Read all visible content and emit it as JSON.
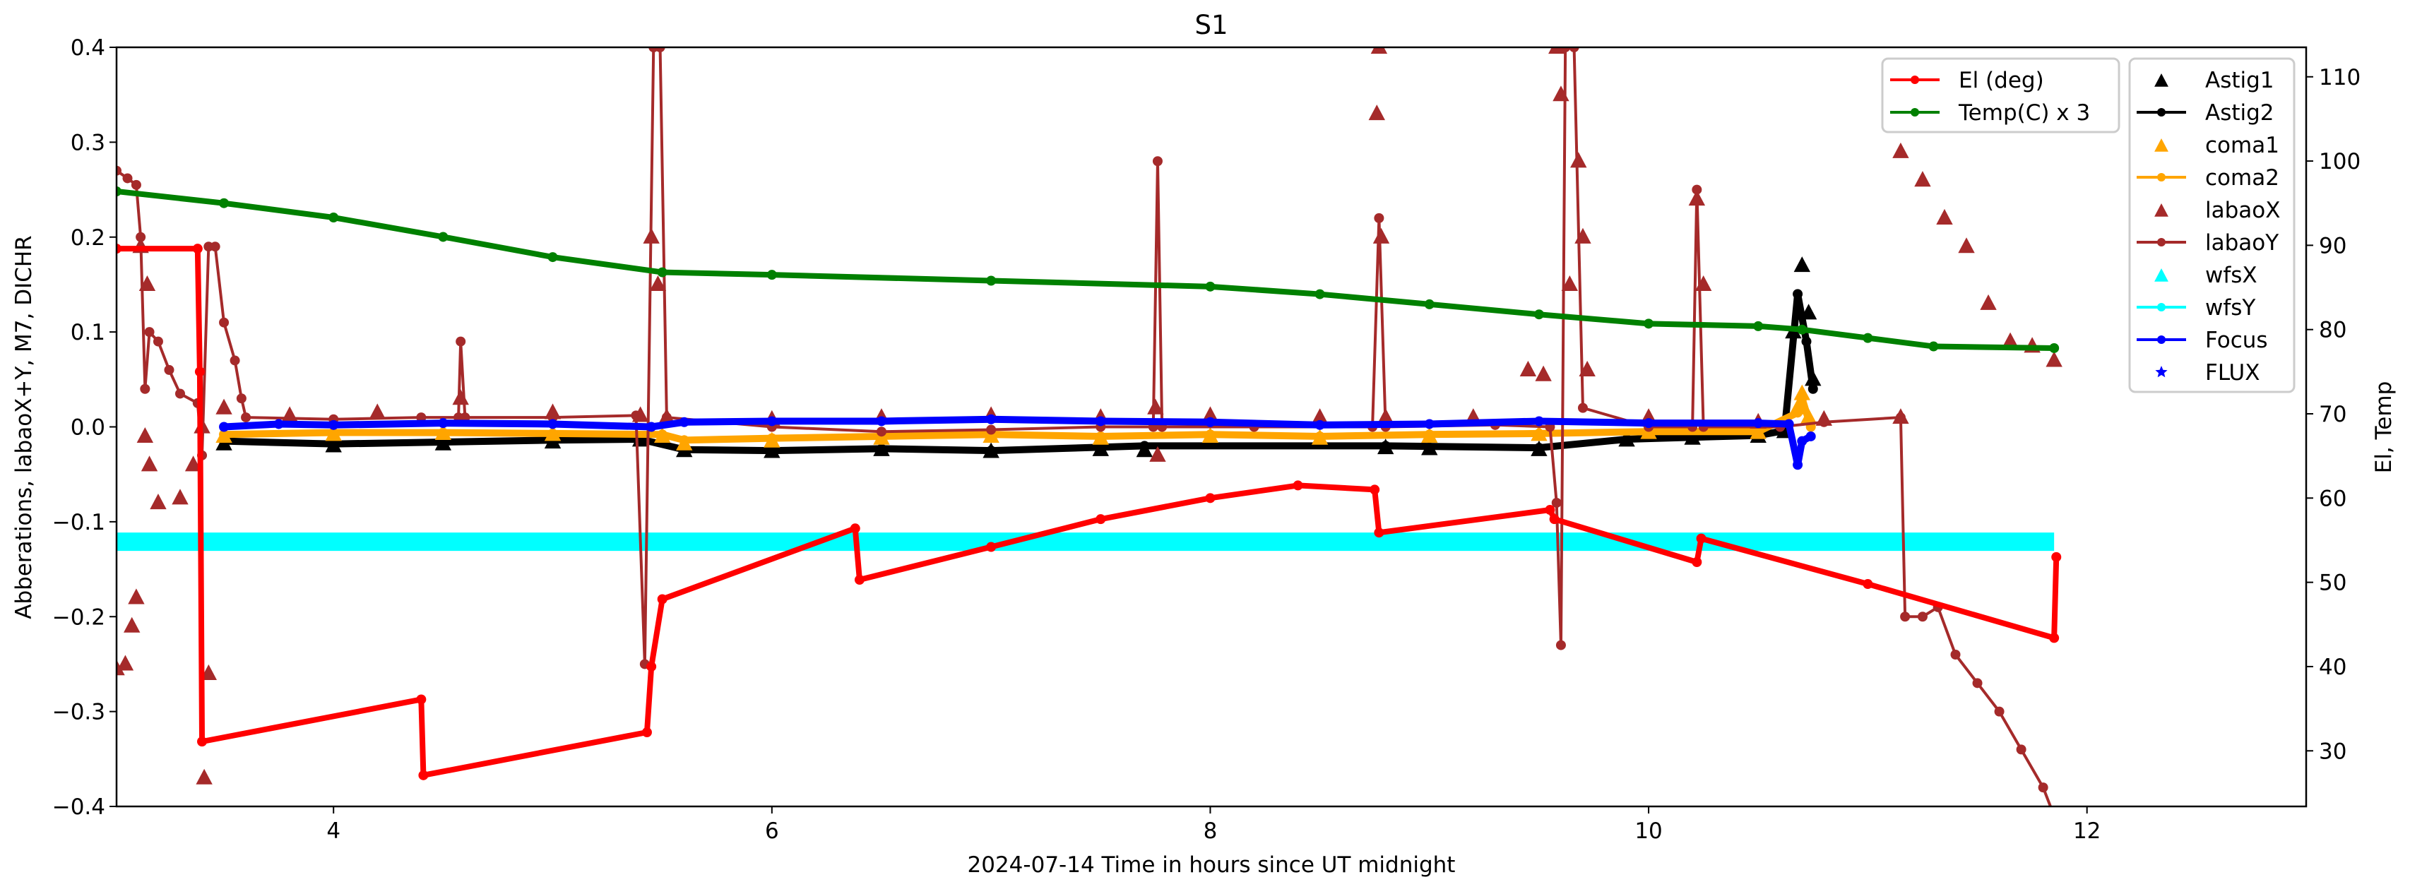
{
  "chart_data": {
    "type": "line",
    "title": "S1",
    "xlabel": "2024-07-14  Time in hours since UT midnight",
    "ylabel": "Abberations, labaoX+Y, M7, DICHR",
    "y2label": "El, Temp",
    "xlim": [
      3.01,
      13.0
    ],
    "ylim": [
      -0.4,
      0.4
    ],
    "y2lim": [
      23.4,
      113.5
    ],
    "xticks": [
      4,
      6,
      8,
      10,
      12
    ],
    "xtick_labels": [
      "4",
      "6",
      "8",
      "10",
      "12"
    ],
    "yticks": [
      0.4,
      0.3,
      0.2,
      0.1,
      0.0,
      -0.1,
      -0.2,
      -0.3,
      -0.4
    ],
    "ytick_labels": [
      "0.4",
      "0.3",
      "0.2",
      "0.1",
      "0.0",
      "−0.1",
      "−0.2",
      "−0.3",
      "−0.4"
    ],
    "y2ticks": [
      110,
      100,
      90,
      80,
      70,
      60,
      50,
      40,
      30
    ],
    "y2tick_labels": [
      "110",
      "100",
      "90",
      "80",
      "70",
      "60",
      "50",
      "40",
      "30"
    ],
    "grid": false,
    "legend_right_axis": {
      "placement": "top-right",
      "entries": [
        {
          "label": "El (deg)",
          "color": "#ff0000",
          "handle": "line-dot"
        },
        {
          "label": "Temp(C) x 3",
          "color": "#008000",
          "handle": "line-dot"
        }
      ]
    },
    "legend_left_axis": {
      "placement": "top-right",
      "entries": [
        {
          "label": "Astig1",
          "color": "#000000",
          "handle": "triangle"
        },
        {
          "label": "Astig2",
          "color": "#000000",
          "handle": "line-dot"
        },
        {
          "label": "coma1",
          "color": "#ffa500",
          "handle": "triangle"
        },
        {
          "label": "coma2",
          "color": "#ffa500",
          "handle": "line-dot"
        },
        {
          "label": "labaoX",
          "color": "#a52a2a",
          "handle": "triangle"
        },
        {
          "label": "labaoY",
          "color": "#a52a2a",
          "handle": "line-dot"
        },
        {
          "label": "wfsX",
          "color": "#00ffff",
          "handle": "triangle"
        },
        {
          "label": "wfsY",
          "color": "#00ffff",
          "handle": "line-dot"
        },
        {
          "label": "Focus",
          "color": "#0000ff",
          "handle": "line-dot"
        },
        {
          "label": "FLUX",
          "color": "#0000ff",
          "handle": "star"
        }
      ]
    },
    "series": [
      {
        "name": "wfsX",
        "axis": "left",
        "color": "#00ffff",
        "style": "band",
        "points": [
          [
            3.01,
            -0.121
          ],
          [
            11.85,
            -0.121
          ]
        ]
      },
      {
        "name": "Astig1",
        "axis": "left",
        "color": "#000000",
        "style": "marker",
        "points": [
          [
            3.5,
            -0.018
          ],
          [
            4.0,
            -0.02
          ],
          [
            4.5,
            -0.018
          ],
          [
            5.0,
            -0.016
          ],
          [
            5.4,
            -0.014
          ],
          [
            5.6,
            -0.025
          ],
          [
            6.0,
            -0.026
          ],
          [
            6.5,
            -0.024
          ],
          [
            7.0,
            -0.026
          ],
          [
            7.5,
            -0.024
          ],
          [
            7.7,
            -0.025
          ],
          [
            8.8,
            -0.022
          ],
          [
            9.0,
            -0.023
          ],
          [
            9.5,
            -0.024
          ],
          [
            9.9,
            -0.014
          ],
          [
            10.2,
            -0.012
          ],
          [
            10.5,
            -0.01
          ],
          [
            10.62,
            -0.005
          ],
          [
            10.66,
            0.1
          ],
          [
            10.7,
            0.17
          ],
          [
            10.73,
            0.12
          ],
          [
            10.75,
            0.05
          ]
        ]
      },
      {
        "name": "Astig2",
        "axis": "left",
        "color": "#000000",
        "style": "both",
        "points": [
          [
            3.5,
            -0.015
          ],
          [
            4.0,
            -0.018
          ],
          [
            4.5,
            -0.016
          ],
          [
            5.0,
            -0.014
          ],
          [
            5.4,
            -0.013
          ],
          [
            5.6,
            -0.024
          ],
          [
            6.0,
            -0.025
          ],
          [
            6.5,
            -0.023
          ],
          [
            7.0,
            -0.025
          ],
          [
            7.7,
            -0.02
          ],
          [
            8.8,
            -0.02
          ],
          [
            9.5,
            -0.022
          ],
          [
            9.9,
            -0.013
          ],
          [
            10.5,
            -0.009
          ],
          [
            10.62,
            -0.004
          ],
          [
            10.68,
            0.14
          ],
          [
            10.72,
            0.09
          ],
          [
            10.75,
            0.04
          ]
        ]
      },
      {
        "name": "coma1",
        "axis": "left",
        "color": "#ffa500",
        "style": "marker",
        "points": [
          [
            3.5,
            -0.01
          ],
          [
            4.0,
            -0.008
          ],
          [
            4.5,
            -0.007
          ],
          [
            5.0,
            -0.008
          ],
          [
            5.5,
            -0.01
          ],
          [
            5.6,
            -0.018
          ],
          [
            6.0,
            -0.015
          ],
          [
            6.5,
            -0.012
          ],
          [
            7.0,
            -0.01
          ],
          [
            7.5,
            -0.012
          ],
          [
            8.0,
            -0.01
          ],
          [
            8.5,
            -0.012
          ],
          [
            9.0,
            -0.01
          ],
          [
            9.5,
            -0.008
          ],
          [
            10.0,
            -0.006
          ],
          [
            10.5,
            -0.006
          ],
          [
            10.68,
            0.02
          ],
          [
            10.7,
            0.035
          ],
          [
            10.73,
            0.01
          ]
        ]
      },
      {
        "name": "coma2",
        "axis": "left",
        "color": "#ffa500",
        "style": "both",
        "points": [
          [
            3.5,
            -0.008
          ],
          [
            4.0,
            -0.006
          ],
          [
            4.5,
            -0.006
          ],
          [
            5.0,
            -0.007
          ],
          [
            5.5,
            -0.008
          ],
          [
            5.6,
            -0.014
          ],
          [
            6.0,
            -0.012
          ],
          [
            6.5,
            -0.01
          ],
          [
            7.0,
            -0.008
          ],
          [
            7.5,
            -0.01
          ],
          [
            8.0,
            -0.008
          ],
          [
            8.5,
            -0.01
          ],
          [
            9.0,
            -0.008
          ],
          [
            9.5,
            -0.007
          ],
          [
            10.0,
            -0.005
          ],
          [
            10.5,
            -0.005
          ],
          [
            10.68,
            0.015
          ],
          [
            10.7,
            0.03
          ],
          [
            10.74,
            0.0
          ]
        ]
      },
      {
        "name": "labaoX",
        "axis": "left",
        "color": "#a52a2a",
        "style": "marker",
        "points": [
          [
            3.01,
            -0.255
          ],
          [
            3.05,
            -0.25
          ],
          [
            3.08,
            -0.21
          ],
          [
            3.1,
            -0.18
          ],
          [
            3.12,
            0.19
          ],
          [
            3.15,
            0.15
          ],
          [
            3.14,
            -0.01
          ],
          [
            3.16,
            -0.04
          ],
          [
            3.2,
            -0.08
          ],
          [
            3.3,
            -0.075
          ],
          [
            3.36,
            -0.04
          ],
          [
            3.4,
            0.0
          ],
          [
            3.41,
            -0.37
          ],
          [
            3.43,
            -0.26
          ],
          [
            3.5,
            0.02
          ],
          [
            3.8,
            0.012
          ],
          [
            4.2,
            0.015
          ],
          [
            4.58,
            0.03
          ],
          [
            5.0,
            0.015
          ],
          [
            5.4,
            0.012
          ],
          [
            5.45,
            0.2
          ],
          [
            5.48,
            0.15
          ],
          [
            5.52,
            0.01
          ],
          [
            6.0,
            0.008
          ],
          [
            6.5,
            0.01
          ],
          [
            7.0,
            0.012
          ],
          [
            7.5,
            0.01
          ],
          [
            7.75,
            0.02
          ],
          [
            7.76,
            -0.03
          ],
          [
            8.0,
            0.012
          ],
          [
            8.5,
            0.01
          ],
          [
            8.77,
            0.4
          ],
          [
            8.76,
            0.33
          ],
          [
            8.78,
            0.2
          ],
          [
            8.8,
            0.01
          ],
          [
            9.2,
            0.01
          ],
          [
            9.45,
            0.06
          ],
          [
            9.52,
            0.055
          ],
          [
            9.58,
            0.4
          ],
          [
            9.6,
            0.35
          ],
          [
            9.64,
            0.15
          ],
          [
            9.68,
            0.28
          ],
          [
            9.7,
            0.2
          ],
          [
            9.72,
            0.06
          ],
          [
            10.0,
            0.01
          ],
          [
            10.22,
            0.24
          ],
          [
            10.25,
            0.15
          ],
          [
            10.5,
            0.005
          ],
          [
            10.8,
            0.008
          ],
          [
            11.15,
            0.01
          ],
          [
            11.15,
            0.29
          ],
          [
            11.25,
            0.26
          ],
          [
            11.35,
            0.22
          ],
          [
            11.45,
            0.19
          ],
          [
            11.55,
            0.13
          ],
          [
            11.65,
            0.09
          ],
          [
            11.75,
            0.085
          ],
          [
            11.85,
            0.07
          ]
        ]
      },
      {
        "name": "labaoY",
        "axis": "left",
        "color": "#a52a2a",
        "style": "both",
        "points": [
          [
            3.01,
            0.27
          ],
          [
            3.06,
            0.262
          ],
          [
            3.1,
            0.255
          ],
          [
            3.12,
            0.2
          ],
          [
            3.14,
            0.04
          ],
          [
            3.16,
            0.1
          ],
          [
            3.2,
            0.09
          ],
          [
            3.25,
            0.06
          ],
          [
            3.3,
            0.035
          ],
          [
            3.38,
            0.025
          ],
          [
            3.4,
            -0.03
          ],
          [
            3.43,
            0.19
          ],
          [
            3.46,
            0.19
          ],
          [
            3.5,
            0.11
          ],
          [
            3.55,
            0.07
          ],
          [
            3.58,
            0.03
          ],
          [
            3.6,
            0.01
          ],
          [
            4.0,
            0.008
          ],
          [
            4.4,
            0.01
          ],
          [
            4.57,
            0.01
          ],
          [
            4.58,
            0.09
          ],
          [
            4.6,
            0.01
          ],
          [
            5.0,
            0.01
          ],
          [
            5.38,
            0.012
          ],
          [
            5.42,
            -0.25
          ],
          [
            5.46,
            0.4
          ],
          [
            5.49,
            0.4
          ],
          [
            5.52,
            0.01
          ],
          [
            6.0,
            0.0
          ],
          [
            6.5,
            -0.005
          ],
          [
            7.0,
            -0.003
          ],
          [
            7.5,
            0.0
          ],
          [
            7.74,
            0.0
          ],
          [
            7.76,
            0.28
          ],
          [
            7.78,
            0.0
          ],
          [
            8.2,
            0.0
          ],
          [
            8.74,
            0.0
          ],
          [
            8.77,
            0.22
          ],
          [
            8.8,
            0.0
          ],
          [
            9.3,
            0.002
          ],
          [
            9.55,
            0.0
          ],
          [
            9.58,
            -0.08
          ],
          [
            9.6,
            -0.23
          ],
          [
            9.62,
            0.4
          ],
          [
            9.66,
            0.4
          ],
          [
            9.7,
            0.02
          ],
          [
            10.0,
            0.0
          ],
          [
            10.2,
            0.0
          ],
          [
            10.22,
            0.25
          ],
          [
            10.25,
            0.0
          ],
          [
            10.6,
            0.0
          ],
          [
            10.8,
            0.005
          ],
          [
            11.15,
            0.01
          ],
          [
            11.17,
            -0.2
          ],
          [
            11.25,
            -0.2
          ],
          [
            11.32,
            -0.19
          ],
          [
            11.4,
            -0.24
          ],
          [
            11.5,
            -0.27
          ],
          [
            11.6,
            -0.3
          ],
          [
            11.7,
            -0.34
          ],
          [
            11.8,
            -0.38
          ],
          [
            11.85,
            -0.41
          ]
        ]
      },
      {
        "name": "Focus",
        "axis": "left",
        "color": "#0000ff",
        "style": "both",
        "points": [
          [
            3.5,
            0.0
          ],
          [
            3.75,
            0.003
          ],
          [
            4.0,
            0.002
          ],
          [
            4.5,
            0.004
          ],
          [
            5.0,
            0.003
          ],
          [
            5.45,
            0.0
          ],
          [
            5.6,
            0.005
          ],
          [
            6.0,
            0.006
          ],
          [
            6.5,
            0.006
          ],
          [
            7.0,
            0.008
          ],
          [
            7.5,
            0.006
          ],
          [
            8.0,
            0.005
          ],
          [
            8.5,
            0.002
          ],
          [
            9.0,
            0.003
          ],
          [
            9.5,
            0.006
          ],
          [
            10.0,
            0.004
          ],
          [
            10.5,
            0.004
          ],
          [
            10.64,
            0.003
          ],
          [
            10.68,
            -0.04
          ],
          [
            10.7,
            -0.015
          ],
          [
            10.74,
            -0.01
          ]
        ]
      },
      {
        "name": "El (deg)",
        "axis": "right",
        "color": "#ff0000",
        "style": "both",
        "points": [
          [
            3.01,
            89.6
          ],
          [
            3.38,
            89.6
          ],
          [
            3.39,
            75
          ],
          [
            3.4,
            31.1
          ],
          [
            4.4,
            36.1
          ],
          [
            4.41,
            27.1
          ],
          [
            5.43,
            32.2
          ],
          [
            5.45,
            40
          ],
          [
            5.5,
            48
          ],
          [
            6.38,
            56.4
          ],
          [
            6.4,
            50.3
          ],
          [
            7.0,
            54.2
          ],
          [
            7.5,
            57.5
          ],
          [
            8.0,
            60
          ],
          [
            8.4,
            61.5
          ],
          [
            8.75,
            61
          ],
          [
            8.77,
            55.9
          ],
          [
            9.55,
            58.6
          ],
          [
            9.57,
            57.5
          ],
          [
            10.22,
            52.4
          ],
          [
            10.24,
            55.2
          ],
          [
            11.0,
            49.8
          ],
          [
            11.85,
            43.4
          ],
          [
            11.86,
            53
          ]
        ]
      },
      {
        "name": "Temp(C) x 3",
        "axis": "right",
        "color": "#008000",
        "style": "both",
        "points": [
          [
            3.01,
            96.4
          ],
          [
            3.5,
            95
          ],
          [
            4.0,
            93.3
          ],
          [
            4.5,
            91
          ],
          [
            5.0,
            88.6
          ],
          [
            5.5,
            86.8
          ],
          [
            6.0,
            86.5
          ],
          [
            7.0,
            85.8
          ],
          [
            8.0,
            85.1
          ],
          [
            8.5,
            84.2
          ],
          [
            9.0,
            83
          ],
          [
            9.5,
            81.8
          ],
          [
            10.0,
            80.7
          ],
          [
            10.5,
            80.4
          ],
          [
            10.7,
            80
          ],
          [
            11.0,
            79
          ],
          [
            11.3,
            78
          ],
          [
            11.85,
            77.8
          ]
        ]
      }
    ]
  }
}
